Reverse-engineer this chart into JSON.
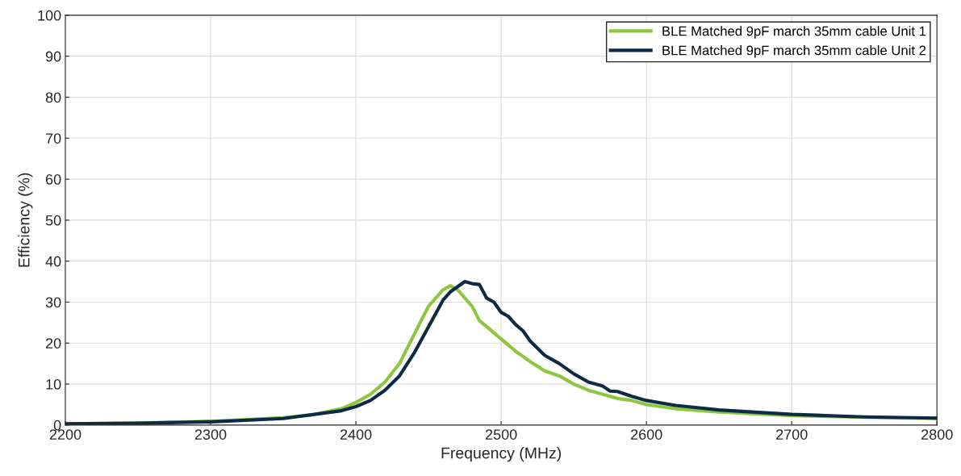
{
  "chart_data": {
    "type": "line",
    "xlabel": "Frequency (MHz)",
    "ylabel": "Efficiency (%)",
    "xlim": [
      2200,
      2800
    ],
    "ylim": [
      0,
      100
    ],
    "xticks": [
      2200,
      2300,
      2400,
      2500,
      2600,
      2700,
      2800
    ],
    "yticks": [
      0,
      10,
      20,
      30,
      40,
      50,
      60,
      70,
      80,
      90,
      100
    ],
    "grid": true,
    "legend": "top right",
    "marker": "none",
    "line_style": "solid",
    "series": [
      {
        "name": "BLE Matched 9pF march 35mm cable Unit 1",
        "color": "#8dc63f",
        "x": [
          2200,
          2250,
          2300,
          2350,
          2370,
          2390,
          2400,
          2410,
          2420,
          2430,
          2440,
          2450,
          2460,
          2465,
          2470,
          2475,
          2480,
          2485,
          2490,
          2500,
          2510,
          2520,
          2530,
          2540,
          2550,
          2560,
          2570,
          2580,
          2590,
          2600,
          2620,
          2650,
          2700,
          2750,
          2800
        ],
        "values": [
          0.3,
          0.5,
          0.9,
          1.8,
          2.5,
          4.0,
          5.5,
          7.5,
          10.5,
          15,
          22,
          29,
          33,
          34,
          33,
          31,
          29,
          25.5,
          24,
          21,
          18,
          15.5,
          13.2,
          12,
          10,
          8.5,
          7.5,
          6.5,
          6,
          5,
          4,
          3.2,
          2.3,
          1.9,
          1.6
        ]
      },
      {
        "name": "BLE Matched 9pF march 35mm cable Unit 2",
        "color": "#0d2b45",
        "x": [
          2200,
          2250,
          2300,
          2350,
          2390,
          2400,
          2410,
          2420,
          2430,
          2440,
          2450,
          2460,
          2465,
          2475,
          2480,
          2485,
          2490,
          2495,
          2500,
          2505,
          2510,
          2515,
          2520,
          2530,
          2540,
          2550,
          2560,
          2570,
          2575,
          2580,
          2590,
          2600,
          2620,
          2650,
          2700,
          2750,
          2800
        ],
        "values": [
          0.3,
          0.45,
          0.8,
          1.6,
          3.5,
          4.5,
          6,
          8.5,
          12,
          17.5,
          24,
          30.5,
          32.5,
          35,
          34.5,
          34.3,
          31,
          30,
          27.5,
          26.5,
          24.5,
          23,
          20.5,
          17,
          15,
          12.5,
          10.5,
          9.5,
          8.3,
          8.2,
          7,
          6,
          4.8,
          3.7,
          2.6,
          2.0,
          1.7
        ]
      }
    ]
  }
}
